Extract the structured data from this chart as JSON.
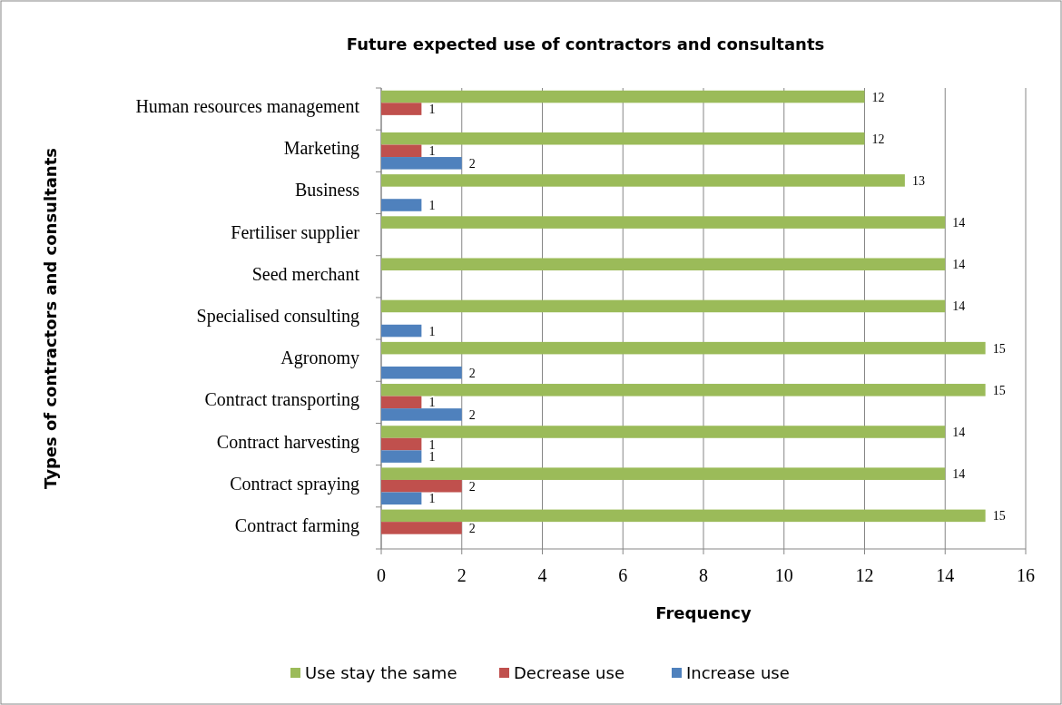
{
  "chart_data": {
    "type": "bar",
    "orientation": "horizontal",
    "title": "Future expected use of contractors and consultants",
    "xlabel": "Frequency",
    "ylabel": "Types of contractors and consultants",
    "categories": [
      "Human resources management",
      "Marketing",
      "Business",
      "Fertiliser supplier",
      "Seed merchant",
      "Specialised consulting",
      "Agronomy",
      "Contract transporting",
      "Contract harvesting",
      "Contract spraying",
      "Contract farming"
    ],
    "series": [
      {
        "name": "Use stay the same",
        "color": "#9bbb59",
        "values": [
          12,
          12,
          13,
          14,
          14,
          14,
          15,
          15,
          14,
          14,
          15
        ]
      },
      {
        "name": "Decrease use",
        "color": "#c0504d",
        "values": [
          1,
          1,
          null,
          null,
          null,
          null,
          null,
          1,
          1,
          2,
          2
        ]
      },
      {
        "name": "Increase use",
        "color": "#4f81bd",
        "values": [
          null,
          2,
          1,
          null,
          null,
          1,
          2,
          2,
          1,
          1,
          null
        ]
      }
    ],
    "xlim": [
      0,
      16
    ],
    "xticks": [
      0,
      2,
      4,
      6,
      8,
      10,
      12,
      14,
      16
    ],
    "grid": "x",
    "legend": "bottom",
    "data_labels": true
  }
}
